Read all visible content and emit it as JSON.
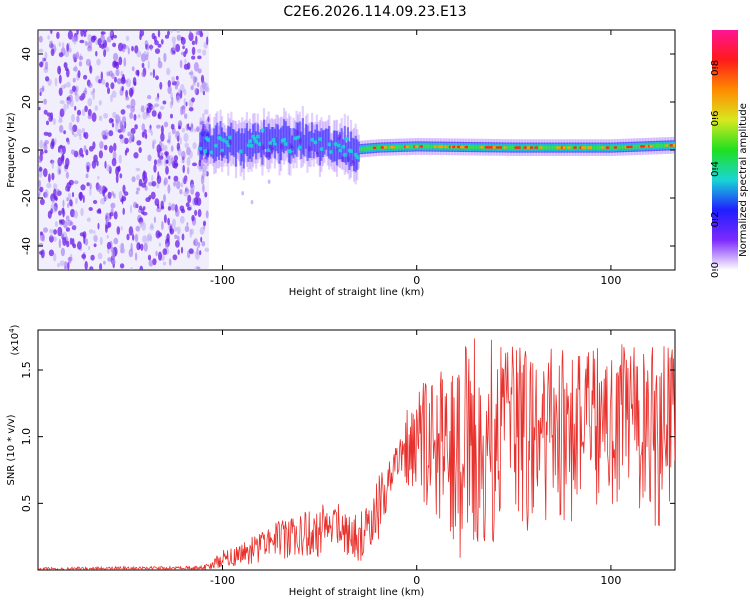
{
  "title": "C2E6.2026.114.09.23.E13",
  "colors": {
    "line": "#e8302c",
    "axis": "#000000",
    "haze": "#b9a7f2",
    "speckle": "#6b1fe6",
    "speckle_light": "#9a6af0"
  },
  "chart_data": [
    {
      "type": "heatmap",
      "title": "C2E6.2026.114.09.23.E13",
      "xlabel": "Height of straight line (km)",
      "ylabel": "Frequency (Hz)",
      "xlim": [
        -195,
        133
      ],
      "ylim": [
        -50,
        50
      ],
      "xticks": [
        -100,
        0,
        100
      ],
      "xtick_labels": [
        "-100",
        "0",
        "100"
      ],
      "yticks": [
        -40,
        -20,
        0,
        20,
        40
      ],
      "ytick_labels": [
        "-40",
        "-20",
        "0",
        "20",
        "40"
      ],
      "noise_region": {
        "x": [
          -195,
          -107
        ],
        "freq": [
          -50,
          50
        ]
      },
      "signal_band": [
        {
          "x": -110,
          "freq": 3
        },
        {
          "x": -90,
          "freq": 2
        },
        {
          "x": -70,
          "freq": 4
        },
        {
          "x": -50,
          "freq": 3
        },
        {
          "x": -35,
          "freq": 0
        },
        {
          "x": -20,
          "freq": 1
        },
        {
          "x": 0,
          "freq": 1.5
        },
        {
          "x": 50,
          "freq": 1
        },
        {
          "x": 100,
          "freq": 1
        },
        {
          "x": 133,
          "freq": 2
        }
      ],
      "colorbar": {
        "label": "Normalized spectral amplitude",
        "range": [
          0,
          0.95
        ],
        "ticks": [
          0.0,
          0.2,
          0.4,
          0.6,
          0.8
        ],
        "tick_labels": [
          "0.0",
          "0.2",
          "0.4",
          "0.6",
          "0.8"
        ],
        "stops": [
          "#ffffff",
          "#7d2aff",
          "#1f1fff",
          "#19d6d6",
          "#1fe01f",
          "#d8e81f",
          "#ff8c00",
          "#ff1a1a",
          "#ff1493"
        ]
      }
    },
    {
      "type": "line",
      "xlabel": "Height of straight line (km)",
      "ylabel": "SNR (10 * v/v)",
      "yscale_label": "(x10",
      "yscale_exp": "4",
      "yscale_close": ")",
      "xlim": [
        -195,
        133
      ],
      "ylim": [
        0,
        1.8
      ],
      "xticks": [
        -100,
        0,
        100
      ],
      "xtick_labels": [
        "-100",
        "0",
        "100"
      ],
      "yticks": [
        0.5,
        1.0,
        1.5
      ],
      "ytick_labels": [
        "0.5",
        "1.0",
        "1.5"
      ],
      "series": [
        {
          "name": "SNR",
          "envelope": [
            {
              "x": -195,
              "low": 0.0,
              "high": 0.02
            },
            {
              "x": -110,
              "low": 0.0,
              "high": 0.03
            },
            {
              "x": -100,
              "low": 0.02,
              "high": 0.15
            },
            {
              "x": -80,
              "low": 0.05,
              "high": 0.3
            },
            {
              "x": -60,
              "low": 0.1,
              "high": 0.45
            },
            {
              "x": -40,
              "low": 0.1,
              "high": 0.55
            },
            {
              "x": -30,
              "low": 0.05,
              "high": 0.4
            },
            {
              "x": -20,
              "low": 0.2,
              "high": 0.7
            },
            {
              "x": -10,
              "low": 0.7,
              "high": 1.0
            },
            {
              "x": 0,
              "low": 0.5,
              "high": 1.4
            },
            {
              "x": 20,
              "low": 0.1,
              "high": 1.6
            },
            {
              "x": 30,
              "low": 0.05,
              "high": 1.8
            },
            {
              "x": 60,
              "low": 0.3,
              "high": 1.65
            },
            {
              "x": 100,
              "low": 0.4,
              "high": 1.7
            },
            {
              "x": 133,
              "low": 0.3,
              "high": 1.7
            }
          ]
        }
      ]
    }
  ]
}
